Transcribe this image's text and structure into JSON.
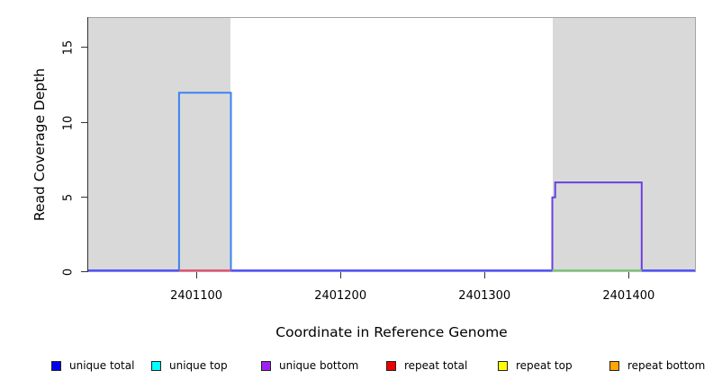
{
  "figure": {
    "background": "#ffffff"
  },
  "chart_data": {
    "type": "line",
    "subtype": "step-coverage",
    "title": "",
    "xlabel": "Coordinate in Reference Genome",
    "ylabel": "Read Coverage Depth",
    "xlim": [
      2401025,
      2401446
    ],
    "ylim": [
      0,
      17
    ],
    "xticks": [
      "2401100",
      "2401200",
      "2401300",
      "2401400"
    ],
    "xtick_values": [
      2401100,
      2401200,
      2401300,
      2401400
    ],
    "yticks": [
      "0",
      "5",
      "10",
      "15"
    ],
    "ytick_values": [
      0,
      5,
      10,
      15
    ],
    "grid": false,
    "legend_position": "bottom",
    "plot_colors": {
      "shade_fill": "#d9d9d9",
      "box_border": "#a3a3a3",
      "axis": "#333333"
    },
    "shaded_regions": [
      {
        "x0": 2401025,
        "x1": 2401124
      },
      {
        "x0": 2401347,
        "x1": 2401446
      }
    ],
    "series": [
      {
        "name": "unique total",
        "color": "#0000ee",
        "line_color": "#3d82f5",
        "points": [
          [
            2401025,
            0
          ],
          [
            2401088,
            0
          ],
          [
            2401088,
            12
          ],
          [
            2401124,
            12
          ],
          [
            2401124,
            0
          ],
          [
            2401446,
            0
          ]
        ]
      },
      {
        "name": "unique top",
        "color": "#00ffff",
        "line_color": "#00ffff",
        "points": [
          [
            2401025,
            0
          ],
          [
            2401446,
            0
          ]
        ]
      },
      {
        "name": "unique bottom",
        "color": "#a020f0",
        "line_color": "#6a3fe0",
        "points": [
          [
            2401025,
            0
          ],
          [
            2401347,
            0
          ],
          [
            2401347,
            5
          ],
          [
            2401349,
            5
          ],
          [
            2401349,
            6
          ],
          [
            2401409,
            6
          ],
          [
            2401409,
            0
          ],
          [
            2401446,
            0
          ]
        ]
      },
      {
        "name": "repeat total",
        "color": "#ee0000",
        "line_color": "#e0586e",
        "points": [
          [
            2401088,
            0
          ],
          [
            2401124,
            0
          ]
        ]
      },
      {
        "name": "repeat top",
        "color": "#ffff00",
        "line_color": "#ffff00",
        "points": [
          [
            2401025,
            0
          ],
          [
            2401446,
            0
          ]
        ]
      },
      {
        "name": "repeat bottom",
        "color": "#ffa500",
        "line_color": "#ffa500",
        "points": [
          [
            2401025,
            0
          ],
          [
            2401446,
            0
          ]
        ]
      }
    ],
    "baseline_segments": [
      {
        "x0": 2401025,
        "x1": 2401446,
        "top_color": "#5058f0",
        "bottom_color": "#a596fa"
      },
      {
        "x0": 2401088,
        "x1": 2401124,
        "top_color": "#e0586e",
        "bottom_color": "#f2aebb"
      },
      {
        "x0": 2401347,
        "x1": 2401409,
        "top_color": "#79c57f",
        "bottom_color": "#e8dc96"
      }
    ]
  }
}
